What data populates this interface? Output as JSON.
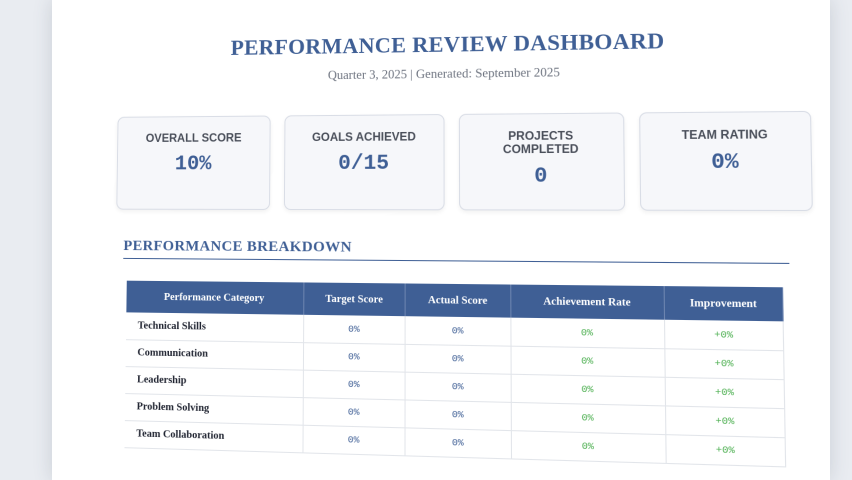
{
  "header": {
    "title": "PERFORMANCE REVIEW DASHBOARD",
    "subtitle": "Quarter 3, 2025 | Generated: September 2025"
  },
  "cards": [
    {
      "label": "Overall Score",
      "value": "10%"
    },
    {
      "label": "Goals Achieved",
      "value": "0/15"
    },
    {
      "label": "Projects Completed",
      "value": "0"
    },
    {
      "label": "Team Rating",
      "value": "0%"
    }
  ],
  "breakdown": {
    "title": "PERFORMANCE BREAKDOWN",
    "columns": [
      "Performance Category",
      "Target Score",
      "Actual Score",
      "Achievement Rate",
      "Improvement"
    ],
    "rows": [
      {
        "category": "Technical Skills",
        "target": "0%",
        "actual": "0%",
        "rate": "0%",
        "improvement": "+0%"
      },
      {
        "category": "Communication",
        "target": "0%",
        "actual": "0%",
        "rate": "0%",
        "improvement": "+0%"
      },
      {
        "category": "Leadership",
        "target": "0%",
        "actual": "0%",
        "rate": "0%",
        "improvement": "+0%"
      },
      {
        "category": "Problem Solving",
        "target": "0%",
        "actual": "0%",
        "rate": "0%",
        "improvement": "+0%"
      },
      {
        "category": "Team Collaboration",
        "target": "0%",
        "actual": "0%",
        "rate": "0%",
        "improvement": "+0%"
      }
    ]
  },
  "colors": {
    "accent": "#3f5f95",
    "positive": "#4caf50"
  }
}
